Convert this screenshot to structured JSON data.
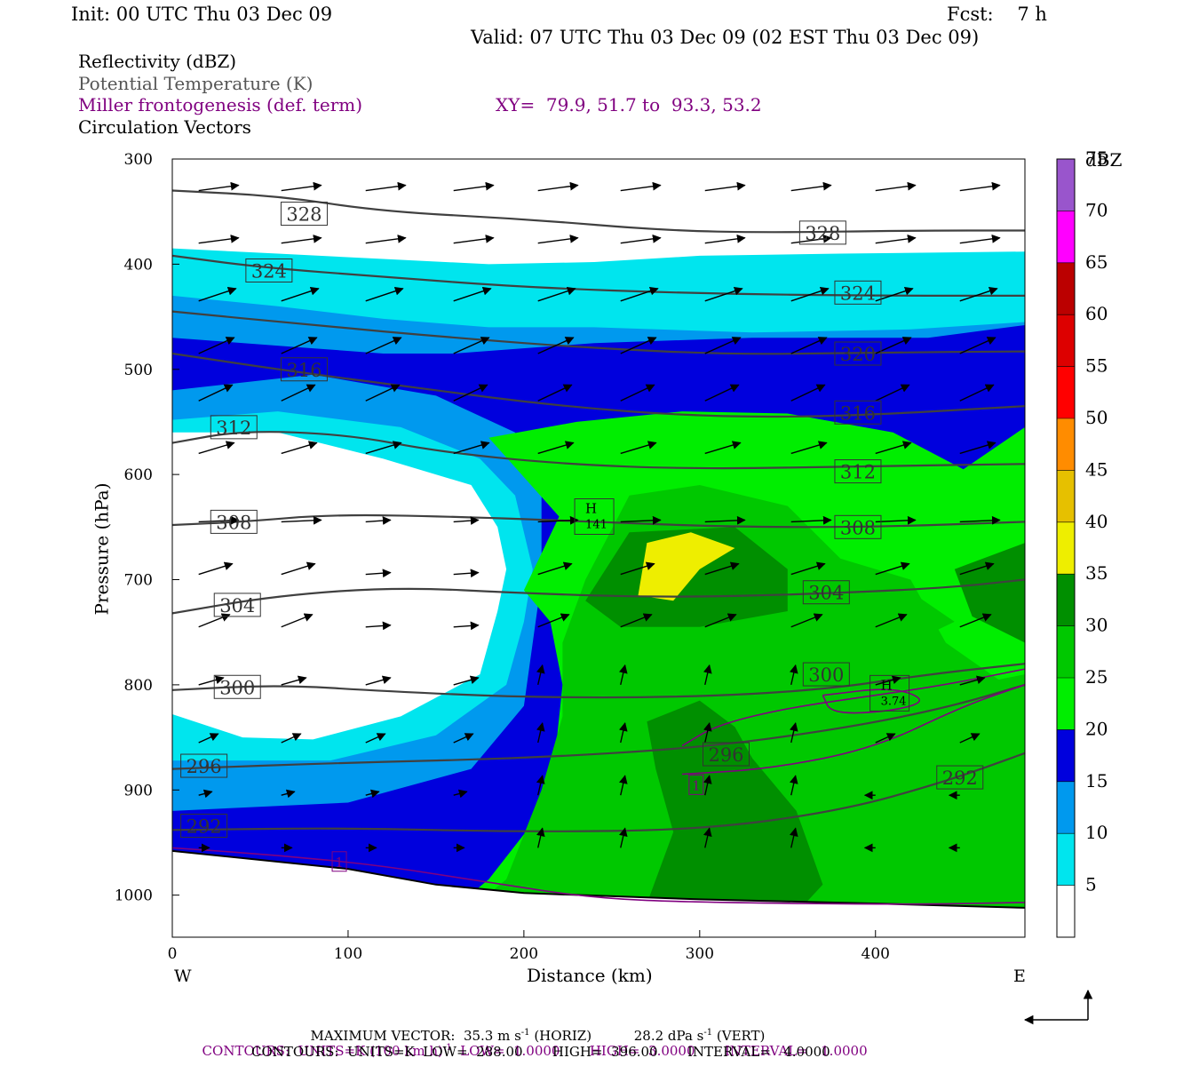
{
  "header": {
    "init": "Init: 00 UTC Thu 03 Dec 09",
    "fcst": "Fcst:    7 h",
    "valid": "Valid: 07 UTC Thu 03 Dec 09 (02 EST Thu 03 Dec 09)"
  },
  "legend": {
    "reflectivity": "Reflectivity (dBZ)",
    "theta": "Potential Temperature (K)",
    "miller": "Miller frontogenesis (def. term)",
    "xy": "XY=  79.9, 51.7 to  93.3, 53.2",
    "vectors": "Circulation Vectors"
  },
  "footer": {
    "max_vector_label": "MAXIMUM VECTOR:",
    "max_vector_horiz": "35.3 m s",
    "max_vector_horiz_sup": "-1",
    "max_vector_horiz_tag": "(HORIZ)",
    "max_vector_vert": "28.2 dPa s",
    "max_vector_vert_sup": "-1",
    "max_vector_vert_tag": "(VERT)",
    "contours1_prefix": "CONTOURS:  UNITS=K (100 km h)",
    "contours1_sup": "-1",
    "contours1_rest": "  LOW=  1.0000       HIGH=  3.0000       INTERVAL=   1.0000",
    "contours2": "CONTOURS:  UNITS=K  LOW=  288.00       HIGH=  396.00       INTERVAL=   4.0000"
  },
  "colors": {
    "dbz_palette": [
      "#ffffff",
      "#00e5ee",
      "#0099ee",
      "#0000dd",
      "#00ee00",
      "#00c800",
      "#008f00",
      "#eeee00",
      "#e6c000",
      "#ff8c00",
      "#ff0000",
      "#dd0000",
      "#bb0000",
      "#ff00ff",
      "#9955cc"
    ],
    "theta_line": "#404040",
    "miller_line": "#800080",
    "vector": "#000000"
  },
  "chart_data": {
    "type": "cross-section",
    "xlabel": "Distance (km)",
    "ylabel": "Pressure (hPa)",
    "xlim": [
      0,
      485
    ],
    "ylim": [
      1040,
      300
    ],
    "x_ticks": [
      0,
      100,
      200,
      300,
      400
    ],
    "y_ticks": [
      300,
      400,
      500,
      600,
      700,
      800,
      900,
      1000
    ],
    "left_end_label": "W",
    "right_end_label": "E",
    "colorbar": {
      "title": "dBZ",
      "levels": [
        5,
        10,
        15,
        20,
        25,
        30,
        35,
        40,
        45,
        50,
        55,
        60,
        65,
        70,
        75
      ]
    },
    "theta_contours": [
      {
        "value": 328,
        "points": [
          [
            0,
            330
          ],
          [
            60,
            335
          ],
          [
            120,
            350
          ],
          [
            200,
            357
          ],
          [
            280,
            368
          ],
          [
            340,
            370
          ],
          [
            420,
            368
          ],
          [
            485,
            368
          ]
        ],
        "labels": [
          [
            75,
            352
          ],
          [
            370,
            370
          ]
        ]
      },
      {
        "value": 324,
        "points": [
          [
            0,
            392
          ],
          [
            50,
            403
          ],
          [
            120,
            412
          ],
          [
            200,
            422
          ],
          [
            300,
            428
          ],
          [
            400,
            430
          ],
          [
            485,
            430
          ]
        ],
        "labels": [
          [
            55,
            406
          ],
          [
            390,
            427
          ]
        ]
      },
      {
        "value": 320,
        "points": [
          [
            0,
            445
          ],
          [
            80,
            458
          ],
          [
            160,
            470
          ],
          [
            240,
            480
          ],
          [
            320,
            486
          ],
          [
            400,
            484
          ],
          [
            485,
            483
          ]
        ],
        "labels": [
          [
            390,
            485
          ]
        ]
      },
      {
        "value": 316,
        "points": [
          [
            0,
            485
          ],
          [
            60,
            500
          ],
          [
            140,
            518
          ],
          [
            220,
            535
          ],
          [
            300,
            545
          ],
          [
            380,
            545
          ],
          [
            485,
            535
          ]
        ],
        "labels": [
          [
            75,
            500
          ],
          [
            390,
            541
          ]
        ]
      },
      {
        "value": 312,
        "points": [
          [
            0,
            570
          ],
          [
            40,
            558
          ],
          [
            100,
            562
          ],
          [
            150,
            578
          ],
          [
            220,
            590
          ],
          [
            300,
            595
          ],
          [
            400,
            592
          ],
          [
            485,
            590
          ]
        ],
        "labels": [
          [
            35,
            555
          ],
          [
            390,
            597
          ]
        ]
      },
      {
        "value": 308,
        "points": [
          [
            0,
            648
          ],
          [
            40,
            645
          ],
          [
            90,
            638
          ],
          [
            160,
            640
          ],
          [
            240,
            645
          ],
          [
            320,
            650
          ],
          [
            400,
            650
          ],
          [
            485,
            645
          ]
        ],
        "labels": [
          [
            35,
            645
          ],
          [
            390,
            650
          ]
        ]
      },
      {
        "value": 304,
        "points": [
          [
            0,
            732
          ],
          [
            60,
            715
          ],
          [
            130,
            707
          ],
          [
            200,
            713
          ],
          [
            280,
            717
          ],
          [
            360,
            714
          ],
          [
            440,
            708
          ],
          [
            485,
            700
          ]
        ],
        "labels": [
          [
            37,
            724
          ],
          [
            372,
            712
          ]
        ]
      },
      {
        "value": 300,
        "points": [
          [
            0,
            805
          ],
          [
            60,
            800
          ],
          [
            120,
            806
          ],
          [
            200,
            812
          ],
          [
            290,
            812
          ],
          [
            370,
            805
          ],
          [
            430,
            790
          ],
          [
            485,
            780
          ]
        ],
        "labels": [
          [
            37,
            802
          ],
          [
            372,
            790
          ]
        ]
      },
      {
        "value": 296,
        "points": [
          [
            0,
            880
          ],
          [
            100,
            874
          ],
          [
            200,
            870
          ],
          [
            300,
            860
          ],
          [
            380,
            842
          ],
          [
            440,
            822
          ],
          [
            485,
            800
          ]
        ],
        "labels": [
          [
            18,
            877
          ],
          [
            315,
            866
          ]
        ]
      },
      {
        "value": 292,
        "points": [
          [
            0,
            938
          ],
          [
            100,
            936
          ],
          [
            200,
            940
          ],
          [
            300,
            938
          ],
          [
            380,
            920
          ],
          [
            440,
            892
          ],
          [
            485,
            865
          ]
        ],
        "labels": [
          [
            18,
            934
          ],
          [
            448,
            888
          ]
        ]
      }
    ],
    "miller_contours": [
      {
        "value": 1,
        "points": [
          [
            0,
            955
          ],
          [
            60,
            962
          ],
          [
            120,
            972
          ],
          [
            180,
            988
          ],
          [
            240,
            1003
          ],
          [
            300,
            1007
          ],
          [
            420,
            1009
          ],
          [
            485,
            1007
          ]
        ],
        "labels": [
          [
            95,
            968
          ]
        ]
      },
      {
        "value": 1,
        "points": [
          [
            290,
            858
          ],
          [
            310,
            838
          ],
          [
            350,
            822
          ],
          [
            400,
            810
          ],
          [
            440,
            800
          ],
          [
            485,
            785
          ]
        ],
        "labels": [
          [
            298,
            895
          ]
        ]
      },
      {
        "value": 1,
        "points": [
          [
            370,
            810
          ],
          [
            410,
            802
          ],
          [
            430,
            815
          ],
          [
            410,
            825
          ],
          [
            375,
            828
          ],
          [
            370,
            810
          ]
        ],
        "labels": []
      },
      {
        "value": 1,
        "points": [
          [
            290,
            885
          ],
          [
            340,
            880
          ],
          [
            400,
            860
          ],
          [
            450,
            820
          ],
          [
            485,
            800
          ]
        ],
        "labels": []
      }
    ],
    "maxima": [
      {
        "label": "H",
        "value": "141",
        "x": 240,
        "p": 640
      },
      {
        "label": "H",
        "value": "3.74",
        "x": 408,
        "p": 808
      }
    ],
    "reflectivity_regions": [
      {
        "dbz": 5,
        "points": [
          [
            0,
            385
          ],
          [
            60,
            390
          ],
          [
            120,
            395
          ],
          [
            180,
            400
          ],
          [
            240,
            398
          ],
          [
            300,
            392
          ],
          [
            380,
            390
          ],
          [
            485,
            388
          ],
          [
            485,
            1040
          ],
          [
            0,
            1040
          ]
        ]
      },
      {
        "dbz": 10,
        "points": [
          [
            0,
            430
          ],
          [
            60,
            440
          ],
          [
            120,
            452
          ],
          [
            180,
            460
          ],
          [
            240,
            460
          ],
          [
            330,
            465
          ],
          [
            420,
            462
          ],
          [
            485,
            455
          ],
          [
            485,
            1040
          ],
          [
            0,
            1040
          ]
        ]
      },
      {
        "dbz": 15,
        "points": [
          [
            0,
            470
          ],
          [
            80,
            480
          ],
          [
            120,
            485
          ],
          [
            160,
            485
          ],
          [
            240,
            475
          ],
          [
            330,
            470
          ],
          [
            430,
            470
          ],
          [
            485,
            458
          ],
          [
            485,
            1040
          ],
          [
            0,
            1040
          ]
        ]
      },
      {
        "dbz": 20,
        "points": [
          [
            180,
            565
          ],
          [
            230,
            550
          ],
          [
            290,
            540
          ],
          [
            350,
            542
          ],
          [
            410,
            560
          ],
          [
            450,
            595
          ],
          [
            485,
            555
          ],
          [
            485,
            1040
          ],
          [
            140,
            1040
          ],
          [
            180,
            985
          ],
          [
            215,
            910
          ],
          [
            222,
            800
          ],
          [
            215,
            740
          ],
          [
            200,
            710
          ],
          [
            220,
            640
          ]
        ]
      },
      {
        "dbz": 25,
        "points": [
          [
            235,
            700
          ],
          [
            260,
            620
          ],
          [
            300,
            610
          ],
          [
            350,
            630
          ],
          [
            380,
            680
          ],
          [
            420,
            700
          ],
          [
            440,
            760
          ],
          [
            470,
            795
          ],
          [
            485,
            790
          ],
          [
            485,
            1040
          ],
          [
            150,
            1040
          ],
          [
            190,
            985
          ],
          [
            210,
            900
          ],
          [
            222,
            830
          ],
          [
            222,
            760
          ]
        ]
      },
      {
        "dbz": 30,
        "points": [
          [
            235,
            720
          ],
          [
            260,
            655
          ],
          [
            320,
            650
          ],
          [
            350,
            690
          ],
          [
            350,
            730
          ],
          [
            300,
            745
          ],
          [
            255,
            745
          ]
        ]
      },
      {
        "dbz": 30,
        "points": [
          [
            270,
            835
          ],
          [
            300,
            815
          ],
          [
            320,
            840
          ],
          [
            330,
            870
          ],
          [
            355,
            920
          ],
          [
            370,
            990
          ],
          [
            360,
            1008
          ],
          [
            270,
            1008
          ],
          [
            285,
            940
          ],
          [
            275,
            880
          ]
        ]
      },
      {
        "dbz": 30,
        "points": [
          [
            445,
            690
          ],
          [
            485,
            665
          ],
          [
            485,
            760
          ],
          [
            455,
            735
          ]
        ]
      },
      {
        "dbz": 25,
        "points": [
          [
            370,
            725
          ],
          [
            410,
            700
          ],
          [
            445,
            740
          ],
          [
            420,
            760
          ],
          [
            380,
            760
          ]
        ]
      },
      {
        "dbz": 35,
        "points": [
          [
            265,
            715
          ],
          [
            270,
            665
          ],
          [
            295,
            655
          ],
          [
            320,
            670
          ],
          [
            300,
            690
          ],
          [
            285,
            720
          ]
        ]
      }
    ],
    "white_hole": {
      "dbz": 0,
      "points": [
        [
          0,
          560
        ],
        [
          60,
          560
        ],
        [
          120,
          585
        ],
        [
          170,
          610
        ],
        [
          185,
          650
        ],
        [
          190,
          690
        ],
        [
          185,
          730
        ],
        [
          175,
          790
        ],
        [
          130,
          830
        ],
        [
          80,
          852
        ],
        [
          40,
          850
        ],
        [
          0,
          828
        ]
      ]
    },
    "cyan_ring": {
      "dbz": 5,
      "points": [
        [
          0,
          548
        ],
        [
          60,
          540
        ],
        [
          130,
          555
        ],
        [
          175,
          585
        ],
        [
          195,
          620
        ],
        [
          205,
          690
        ],
        [
          200,
          740
        ],
        [
          190,
          800
        ],
        [
          150,
          848
        ],
        [
          90,
          872
        ],
        [
          0,
          872
        ]
      ]
    },
    "lightblue_ring": {
      "dbz": 10,
      "points": [
        [
          0,
          520
        ],
        [
          80,
          505
        ],
        [
          150,
          525
        ],
        [
          195,
          560
        ],
        [
          210,
          620
        ],
        [
          210,
          700
        ],
        [
          205,
          760
        ],
        [
          200,
          820
        ],
        [
          170,
          880
        ],
        [
          100,
          912
        ],
        [
          0,
          920
        ]
      ]
    },
    "vectors_note": "circulation arrows across the section; upper levels westerly, lower levels weaker with ascent near 230-330 km"
  }
}
